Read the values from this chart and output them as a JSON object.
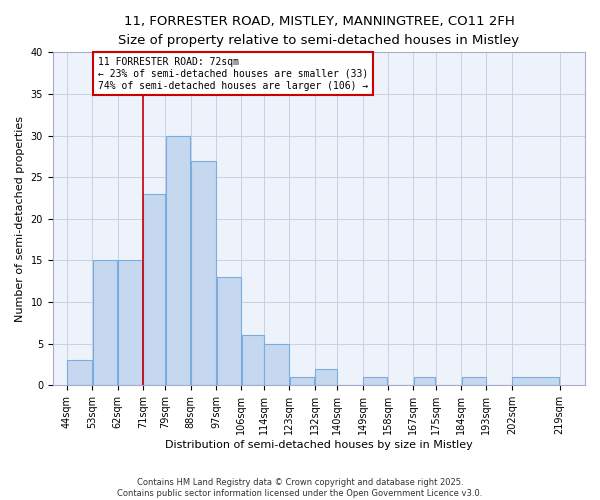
{
  "title_line1": "11, FORRESTER ROAD, MISTLEY, MANNINGTREE, CO11 2FH",
  "title_line2": "Size of property relative to semi-detached houses in Mistley",
  "xlabel": "Distribution of semi-detached houses by size in Mistley",
  "ylabel": "Number of semi-detached properties",
  "bar_left_edges": [
    44,
    53,
    62,
    71,
    79,
    88,
    97,
    106,
    114,
    123,
    132,
    140,
    149,
    158,
    167,
    175,
    184,
    193,
    202
  ],
  "bar_widths": [
    9,
    9,
    9,
    8,
    9,
    9,
    9,
    8,
    9,
    9,
    8,
    9,
    9,
    9,
    8,
    9,
    9,
    9,
    17
  ],
  "bar_heights": [
    3,
    15,
    15,
    23,
    30,
    27,
    13,
    6,
    5,
    1,
    2,
    0,
    1,
    0,
    1,
    0,
    1,
    0,
    1
  ],
  "bar_color": "#c5d8f0",
  "bar_edgecolor": "#7aaddd",
  "property_x": 71,
  "vline_color": "#cc0000",
  "annotation_text_line1": "11 FORRESTER ROAD: 72sqm",
  "annotation_text_line2": "← 23% of semi-detached houses are smaller (33)",
  "annotation_text_line3": "74% of semi-detached houses are larger (106) →",
  "annotation_fontsize": 7.0,
  "xlabels": [
    "44sqm",
    "53sqm",
    "62sqm",
    "71sqm",
    "79sqm",
    "88sqm",
    "97sqm",
    "106sqm",
    "114sqm",
    "123sqm",
    "132sqm",
    "140sqm",
    "149sqm",
    "158sqm",
    "167sqm",
    "175sqm",
    "184sqm",
    "193sqm",
    "202sqm",
    "219sqm"
  ],
  "xtick_positions": [
    44,
    53,
    62,
    71,
    79,
    88,
    97,
    106,
    114,
    123,
    132,
    140,
    149,
    158,
    167,
    175,
    184,
    193,
    202,
    219
  ],
  "ylim": [
    0,
    40
  ],
  "yticks": [
    0,
    5,
    10,
    15,
    20,
    25,
    30,
    35,
    40
  ],
  "background_color": "#edf2fb",
  "footer_text": "Contains HM Land Registry data © Crown copyright and database right 2025.\nContains public sector information licensed under the Open Government Licence v3.0.",
  "footer_fontsize": 6.0,
  "title1_fontsize": 9.5,
  "title2_fontsize": 8.0,
  "axis_label_fontsize": 8.0,
  "tick_fontsize": 7.0
}
